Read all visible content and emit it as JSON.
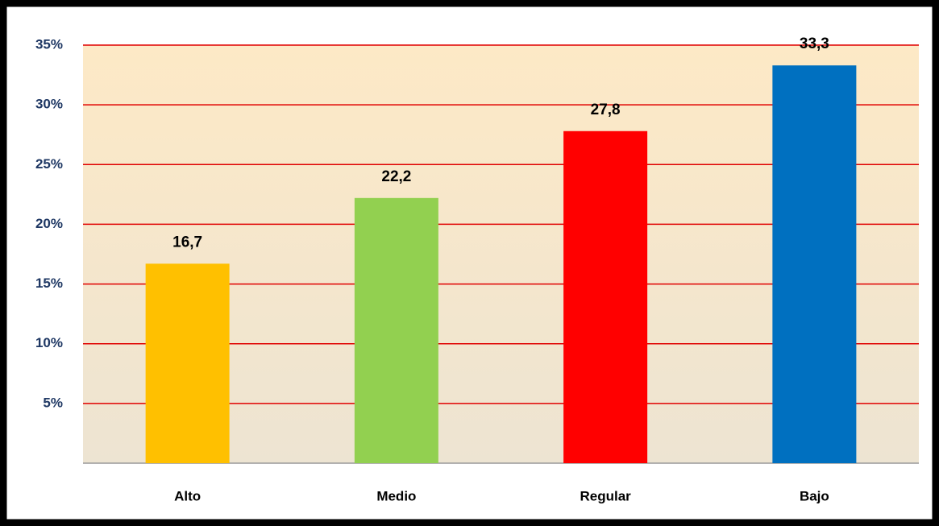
{
  "chart_data": {
    "type": "bar",
    "categories": [
      "Alto",
      "Medio",
      "Regular",
      "Bajo"
    ],
    "values": [
      16.7,
      22.2,
      27.8,
      33.3
    ],
    "value_labels": [
      "16,7",
      "22,2",
      "27,8",
      "33,3"
    ],
    "colors": [
      "#ffc000",
      "#92d050",
      "#ff0000",
      "#0070c0"
    ],
    "ylim": [
      0,
      35
    ],
    "yticks": [
      {
        "value": 5,
        "label": "5%"
      },
      {
        "value": 10,
        "label": "10%"
      },
      {
        "value": 15,
        "label": "15%"
      },
      {
        "value": 20,
        "label": "20%"
      },
      {
        "value": 25,
        "label": "25%"
      },
      {
        "value": 30,
        "label": "30%"
      },
      {
        "value": 35,
        "label": "35%"
      }
    ],
    "grid": true,
    "grid_color": "#e00000"
  }
}
